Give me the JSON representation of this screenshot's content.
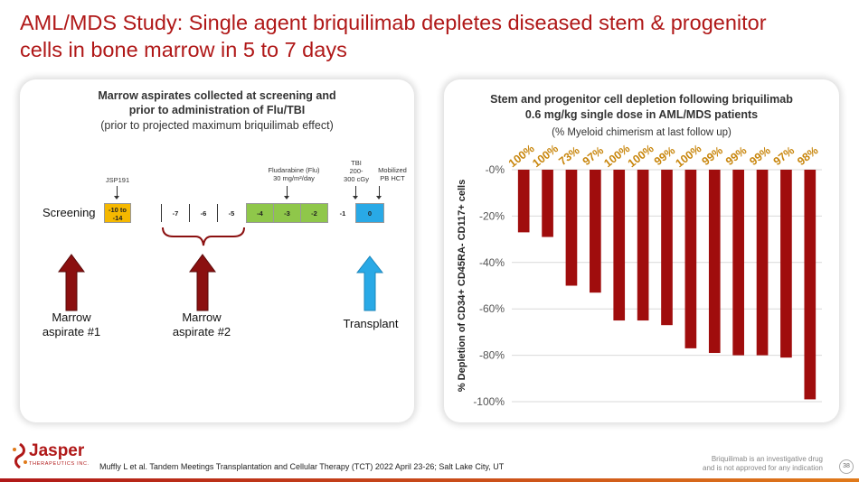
{
  "slide": {
    "title_line1": "AML/MDS Study: Single agent briquilimab depletes diseased stem & progenitor",
    "title_line2": "cells in bone marrow in 5 to 7 days"
  },
  "left_panel": {
    "heading_line1": "Marrow aspirates collected at screening and",
    "heading_line2": "prior to administration of Flu/TBI",
    "subheading": "(prior to projected maximum briquilimab effect)",
    "screening_label": "Screening",
    "jsp_label": "JSP191",
    "flu_label_line1": "Fludarabine (Flu)",
    "flu_label_line2": "30 mg/m²/day",
    "tbi_label_line1": "TBI",
    "tbi_label_line2": "200-",
    "tbi_label_line3": "300 cGy",
    "pb_label_line1": "Mobilized",
    "pb_label_line2": "PB HCT",
    "day_yellow_line1": "-10 to",
    "day_yellow_line2": "-14",
    "days_plain": [
      "-7",
      "-6",
      "-5"
    ],
    "days_green": [
      "-4",
      "-3",
      "-2"
    ],
    "day_minus1": "-1",
    "day_zero": "0",
    "arrow1_line1": "Marrow",
    "arrow1_line2": "aspirate #1",
    "arrow2_line1": "Marrow",
    "arrow2_line2": "aspirate #2",
    "arrow3_label": "Transplant",
    "colors": {
      "yellow": "#f5b800",
      "green": "#8fc74a",
      "blue": "#29a9e6",
      "arrow_red": "#8b1010",
      "arrow_blue": "#29a9e6",
      "brace": "#8b1010"
    }
  },
  "chart_data": {
    "type": "bar",
    "title_line1": "Stem and progenitor cell depletion following briquilimab",
    "title_line2": "0.6 mg/kg single dose in AML/MDS patients",
    "subtitle": "(% Myeloid chimerism at last follow up)",
    "ylabel": "% Depletion of CD34+ CD45RA- CD117+ cells",
    "xlabel": "",
    "ylim": [
      -100,
      0
    ],
    "yticks": [
      0,
      -20,
      -40,
      -60,
      -80,
      -100
    ],
    "ytick_labels": [
      "-0%",
      "-20%",
      "-40%",
      "-60%",
      "-80%",
      "-100%"
    ],
    "grid": true,
    "bar_color": "#a00d0d",
    "label_color": "#c8860d",
    "values": [
      -27,
      -29,
      -50,
      -53,
      -65,
      -65,
      -67,
      -77,
      -79,
      -80,
      -80,
      -81,
      -99
    ],
    "bar_labels": [
      "100%",
      "100%",
      "73%",
      "97%",
      "100%",
      "100%",
      "99%",
      "100%",
      "99%",
      "99%",
      "99%",
      "97%",
      "98%"
    ]
  },
  "footer": {
    "reference": "Muffly L et al. Tandem Meetings Transplantation and Cellular Therapy (TCT) 2022 April  23-26; Salt Lake City, UT",
    "disclaimer_line1": "Briquilimab is an investigative drug",
    "disclaimer_line2": "and is not approved for any indication",
    "page_number": "38",
    "logo_text": "Jasper",
    "logo_subtext": "THERAPEUTICS INC."
  }
}
